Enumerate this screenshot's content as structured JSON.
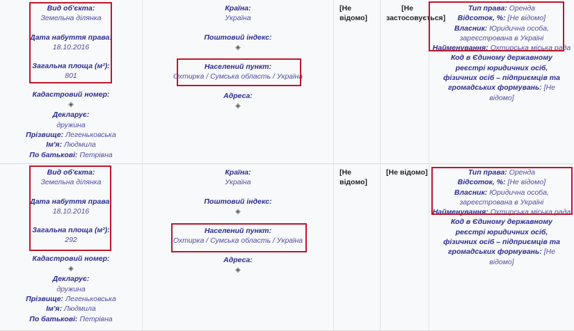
{
  "rows": [
    {
      "object_type_label": "Вид об'єкта:",
      "object_type": "Земельна ділянка",
      "date_label": "Дата набуття права:",
      "date": "18.10.2016",
      "area_label": "Загальна площа (м²):",
      "area": "801",
      "cadastral_label": "Кадастровий номер:",
      "declarant_label": "Декларує:",
      "declarant": "дружина",
      "surname_label": "Прізвище:",
      "surname": "Легеньковська",
      "name_label": "Ім'я:",
      "name": "Людмила",
      "patronymic_label": "По батькові:",
      "patronymic": "Петрівна",
      "country_label": "Країна:",
      "country": "Україна",
      "postal_label": "Поштовий індекс:",
      "locality_label": "Населений пункт:",
      "locality": "Охтирка / Сумська область / Україна",
      "address_label": "Адреса:",
      "col3": "[Не відомо]",
      "col4": "[Не застосовується]",
      "right_type_label": "Тип права:",
      "right_type": "Оренда",
      "percent_label": "Відсоток, %:",
      "percent": "[Не відомо]",
      "owner_label": "Власник:",
      "owner": "Юридична особа, зареєстрована в Україні",
      "owner_name_label": "Найменування:",
      "owner_name": "Охтирська міська рада",
      "code_label": "Код в Єдиному державному реєстрі юридичних осіб, фізичних осіб – підприємців та громадських формувань:",
      "code": "[Не відомо]"
    },
    {
      "object_type_label": "Вид об'єкта:",
      "object_type": "Земельна ділянка",
      "date_label": "Дата набуття права:",
      "date": "18.10.2016",
      "area_label": "Загальна площа (м²):",
      "area": "292",
      "cadastral_label": "Кадастровий номер:",
      "declarant_label": "Декларує:",
      "declarant": "дружина",
      "surname_label": "Прізвище:",
      "surname": "Легеньковська",
      "name_label": "Ім'я:",
      "name": "Людмила",
      "patronymic_label": "По батькові:",
      "patronymic": "Петрівна",
      "country_label": "Країна:",
      "country": "Україна",
      "postal_label": "Поштовий індекс:",
      "locality_label": "Населений пункт:",
      "locality": "Охтирка / Сумська область / Україна",
      "address_label": "Адреса:",
      "col3": "[Не відомо]",
      "col4": "[Не відомо]",
      "right_type_label": "Тип права:",
      "right_type": "Оренда",
      "percent_label": "Відсоток, %:",
      "percent": "[Не відомо]",
      "owner_label": "Власник:",
      "owner": "Юридична особа, зареєстрована в Україні",
      "owner_name_label": "Найменування:",
      "owner_name": "Охтирська міська рада",
      "code_label": "Код в Єдиному державному реєстрі юридичних осіб, фізичних осіб – підприємців та громадських формувань:",
      "code": "[Не відомо]"
    }
  ],
  "hidden_icon": "eye-slash-icon",
  "highlight_color": "#c0142a"
}
